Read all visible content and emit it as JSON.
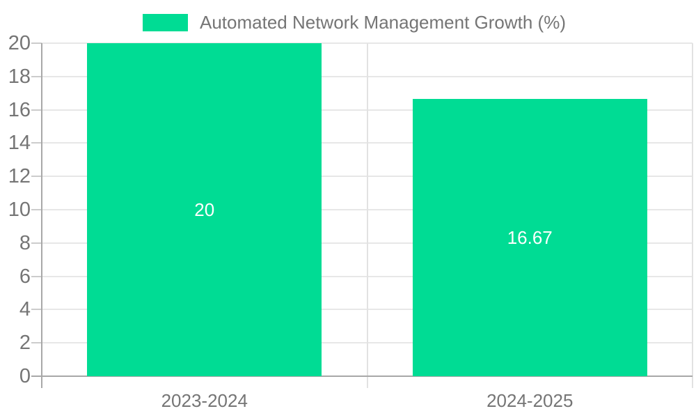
{
  "chart_data": {
    "type": "bar",
    "title": "Automated Network Management Growth (%)",
    "categories": [
      "2023-2024",
      "2024-2025"
    ],
    "series": [
      {
        "name": "Automated Network Management Growth (%)",
        "values": [
          20,
          16.67
        ]
      }
    ],
    "data_labels": [
      "20",
      "16.67"
    ],
    "xlabel": "",
    "ylabel": "",
    "ylim": [
      0,
      20
    ],
    "yticks": [
      0,
      2,
      4,
      6,
      8,
      10,
      12,
      14,
      16,
      18,
      20
    ],
    "grid": true,
    "legend_position": "top",
    "bar_color": "#00DC94",
    "data_label_color": "#ffffff",
    "axis_text_color": "#757575",
    "background_color": "#ffffff"
  }
}
